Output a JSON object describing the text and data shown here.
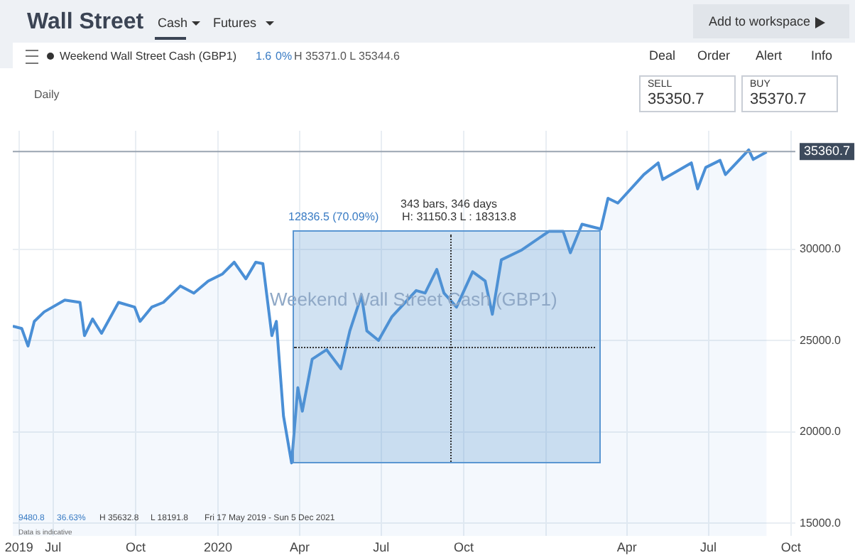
{
  "chart_data": {
    "type": "area",
    "title": "Wall Street",
    "subtitle": "Weekend Wall Street Cash (GBP1)",
    "x": [
      "2019-05-17",
      "2019-05-27",
      "2019-06-03",
      "2019-06-10",
      "2019-06-21",
      "2019-07-14",
      "2019-07-31",
      "2019-08-05",
      "2019-08-14",
      "2019-08-24",
      "2019-09-12",
      "2019-09-30",
      "2019-10-06",
      "2019-10-19",
      "2019-11-01",
      "2019-11-20",
      "2019-12-05",
      "2019-12-21",
      "2020-01-06",
      "2020-01-19",
      "2020-02-01",
      "2020-02-12",
      "2020-02-20",
      "2020-03-01",
      "2020-03-06",
      "2020-03-14",
      "2020-03-23",
      "2020-03-30",
      "2020-04-04",
      "2020-04-15",
      "2020-05-01",
      "2020-05-17",
      "2020-05-27",
      "2020-06-09",
      "2020-06-15",
      "2020-06-28",
      "2020-07-13",
      "2020-08-09",
      "2020-08-19",
      "2020-09-01",
      "2020-09-09",
      "2020-09-23",
      "2020-10-11",
      "2020-10-25",
      "2020-11-02",
      "2020-11-12",
      "2020-12-04",
      "2021-01-04",
      "2021-01-20",
      "2021-01-28",
      "2021-02-10",
      "2021-03-03",
      "2021-03-11",
      "2021-03-22",
      "2021-04-20",
      "2021-05-06",
      "2021-05-11",
      "2021-06-12",
      "2021-06-19",
      "2021-06-28",
      "2021-07-14",
      "2021-07-20",
      "2021-08-15",
      "2021-08-20",
      "2021-09-04"
    ],
    "series": [
      {
        "color": "#4a8fd6",
        "values": [
          25800,
          25670,
          24710,
          26060,
          26580,
          27230,
          27100,
          25280,
          26190,
          25410,
          27100,
          26840,
          26060,
          26840,
          27100,
          28000,
          27610,
          28270,
          28660,
          29300,
          28390,
          29300,
          29220,
          25280,
          26060,
          20880,
          18310,
          22430,
          21140,
          23990,
          24510,
          23470,
          25540,
          27490,
          25540,
          25020,
          26320,
          27750,
          27610,
          28910,
          27610,
          26840,
          28780,
          28270,
          26450,
          29430,
          29950,
          30990,
          30990,
          29820,
          31380,
          31120,
          32800,
          32540,
          34100,
          34740,
          33830,
          34740,
          33320,
          34490,
          34880,
          34100,
          35450,
          34930,
          35340
        ]
      }
    ],
    "xlim": [
      "2019-05-17",
      "2021-10-06"
    ],
    "xticks": [
      {
        "value": "2019-05-24",
        "label": "2019"
      },
      {
        "value": "2019-07-01",
        "label": "Jul"
      },
      {
        "value": "2019-10-01",
        "label": "Oct"
      },
      {
        "value": "2020-01-01",
        "label": "2020"
      },
      {
        "value": "2020-04-01",
        "label": "Apr"
      },
      {
        "value": "2020-07-01",
        "label": "Jul"
      },
      {
        "value": "2020-10-01",
        "label": "Oct"
      },
      {
        "value": "2021-01-01",
        "label": null
      },
      {
        "value": "2021-04-01",
        "label": "Apr"
      },
      {
        "value": "2021-07-01",
        "label": "Jul"
      },
      {
        "value": "2021-10-01",
        "label": "Oct"
      }
    ],
    "ylim": [
      14300,
      36500
    ],
    "yticks": [
      {
        "value": 15000,
        "label": "15000.0"
      },
      {
        "value": 20000,
        "label": "20000.0"
      },
      {
        "value": 25000,
        "label": "25000.0"
      },
      {
        "value": 30000,
        "label": "30000.0"
      }
    ],
    "ref_lines": [
      {
        "axis": "y",
        "value": 35360.7,
        "label": "35360.7",
        "color": "#9aa5b1"
      }
    ],
    "annotations": [
      "Cash",
      "Futures",
      "Add to workspace",
      "1.6",
      "0%",
      "H 35371.0 L 35344.6",
      "Deal",
      "Order",
      "Alert",
      "Info",
      "Daily",
      "SELL",
      "35350.7",
      "BUY",
      "35370.7",
      "Weekend Wall Street Cash (GBP1)",
      "9480.8",
      "36.63%",
      "H 35632.8",
      "L 18191.8",
      "Fri 17 May 2019 - Sun 5 Dec 2021",
      "Data is indicative",
      "343 bars, 346 days",
      "12836.5 (70.09%)",
      "H: 31150.3 L : 18313.8"
    ],
    "grid": true,
    "legend": false,
    "marker": "none"
  }
}
